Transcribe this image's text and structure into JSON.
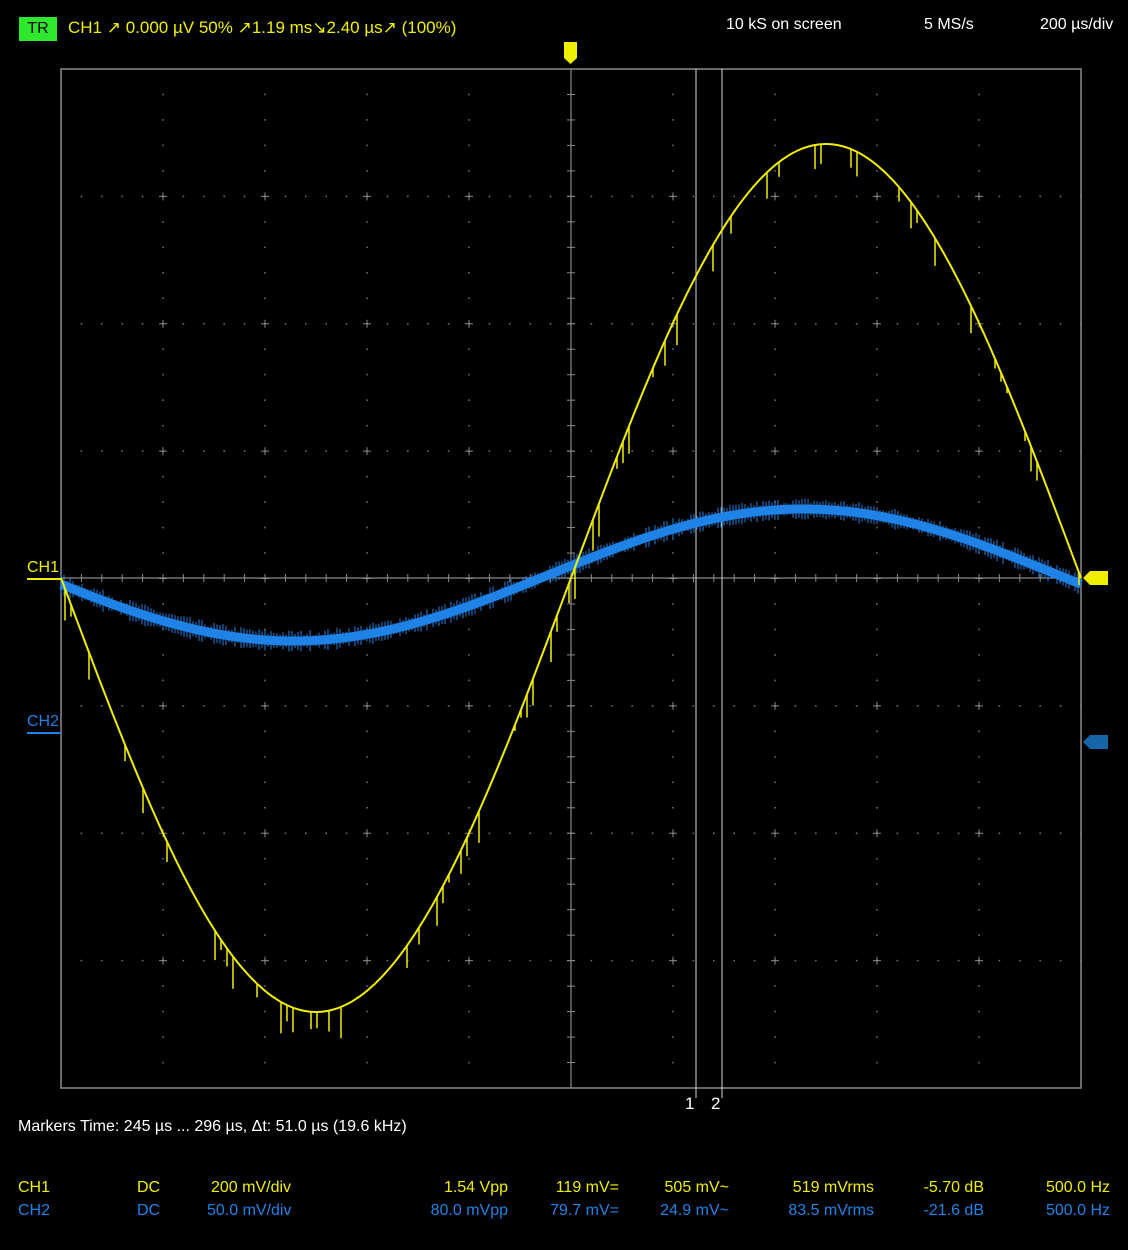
{
  "header": {
    "trigger_badge": "TR",
    "trigger_info": "CH1  ↗  0.000 µV  50%  ↗1.19 ms↘2.40 µs↗ (100%)",
    "samples_on_screen": "10 kS on screen",
    "sample_rate": "5 MS/s",
    "timebase": "200 µs/div"
  },
  "channel_markers": {
    "ch1_label": "CH1",
    "ch2_label": "CH2"
  },
  "cursors": {
    "cursor1_label": "1",
    "cursor2_label": "2"
  },
  "markers_readout": "Markers  Time: 245 µs ... 296 µs,  Δt: 51.0 µs (19.6 kHz)",
  "measurements": [
    {
      "channel": "CH1",
      "coupling": "DC",
      "scale": "200 mV/div",
      "vpp": "1.54 Vpp",
      "mean": "119 mV=",
      "ac": "505 mV~",
      "rms": "519 mVrms",
      "db": "-5.70 dB",
      "freq": "500.0 Hz"
    },
    {
      "channel": "CH2",
      "coupling": "DC",
      "scale": "50.0 mV/div",
      "vpp": "80.0 mVpp",
      "mean": "79.7 mV=",
      "ac": "24.9 mV~",
      "rms": "83.5 mVrms",
      "db": "-21.6 dB",
      "freq": "500.0 Hz"
    }
  ],
  "colors": {
    "ch1": "#f0ee00",
    "ch2": "#1e82e6",
    "grid": "#8a8a8a",
    "background": "#000000",
    "trigger_badge": "#2ee82e"
  }
}
